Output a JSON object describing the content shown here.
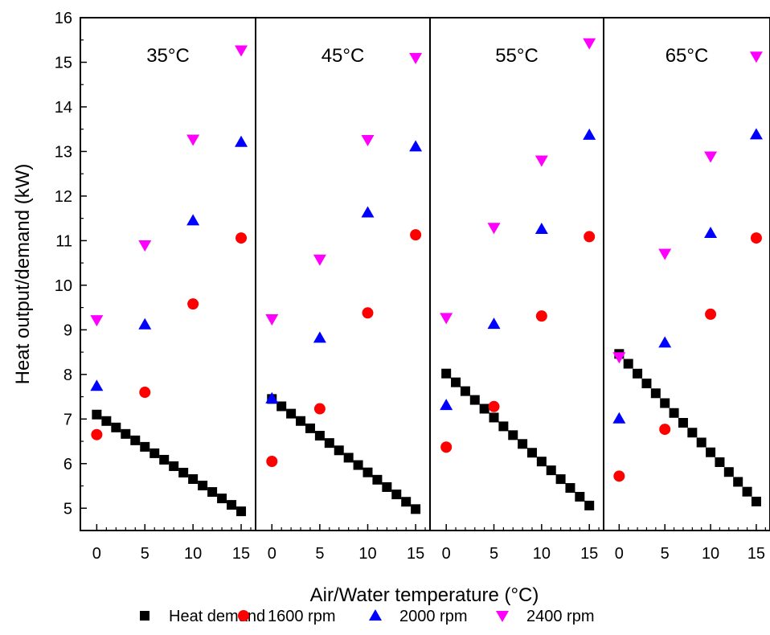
{
  "chart_data": {
    "type": "scatter",
    "ylabel": "Heat output/demand (kW)",
    "xlabel": "Air/Water temperature (°C)",
    "ylim": [
      4.5,
      16
    ],
    "yticks": [
      5,
      6,
      7,
      8,
      9,
      10,
      11,
      12,
      13,
      14,
      15,
      16
    ],
    "xlim_panel": [
      -1.7,
      16.5
    ],
    "xticks": [
      0,
      5,
      10,
      15
    ],
    "legend": {
      "position": "bottom",
      "entries": [
        {
          "name": "Heat demand",
          "marker": "square",
          "color": "#000000"
        },
        {
          "name": "1600 rpm",
          "marker": "circle",
          "color": "#ff0000"
        },
        {
          "name": "2000 rpm",
          "marker": "triangle-up",
          "color": "#0000ff"
        },
        {
          "name": "2400 rpm",
          "marker": "triangle-down",
          "color": "#ff00ff"
        }
      ]
    },
    "panels": [
      {
        "label": "35°C",
        "heat_demand": {
          "x": [
            0,
            15
          ],
          "y": [
            7.1,
            4.93
          ]
        },
        "series": [
          {
            "name": "1600 rpm",
            "x": [
              0,
              5,
              10,
              15
            ],
            "y": [
              6.65,
              7.6,
              9.58,
              11.06
            ]
          },
          {
            "name": "2000 rpm",
            "x": [
              0,
              5,
              10,
              15
            ],
            "y": [
              7.74,
              9.12,
              11.45,
              13.21
            ]
          },
          {
            "name": "2400 rpm",
            "x": [
              0,
              5,
              10,
              15
            ],
            "y": [
              9.22,
              10.9,
              13.27,
              15.27
            ]
          }
        ]
      },
      {
        "label": "45°C",
        "heat_demand": {
          "x": [
            0,
            15
          ],
          "y": [
            7.45,
            4.98
          ]
        },
        "series": [
          {
            "name": "1600 rpm",
            "x": [
              0,
              5,
              10,
              15
            ],
            "y": [
              6.05,
              7.23,
              9.38,
              11.13
            ]
          },
          {
            "name": "2000 rpm",
            "x": [
              0,
              5,
              10,
              15
            ],
            "y": [
              7.46,
              8.82,
              11.63,
              13.11
            ]
          },
          {
            "name": "2400 rpm",
            "x": [
              0,
              5,
              10,
              15
            ],
            "y": [
              9.24,
              10.58,
              13.26,
              15.1
            ]
          }
        ]
      },
      {
        "label": "55°C",
        "heat_demand": {
          "x": [
            0,
            15
          ],
          "y": [
            8.02,
            5.06
          ]
        },
        "series": [
          {
            "name": "1600 rpm",
            "x": [
              0,
              5,
              10,
              15
            ],
            "y": [
              6.37,
              7.28,
              9.31,
              11.09
            ]
          },
          {
            "name": "2000 rpm",
            "x": [
              0,
              5,
              10,
              15
            ],
            "y": [
              7.31,
              9.13,
              11.26,
              13.37
            ]
          },
          {
            "name": "2400 rpm",
            "x": [
              0,
              5,
              10,
              15
            ],
            "y": [
              9.27,
              11.29,
              12.8,
              15.43
            ]
          }
        ]
      },
      {
        "label": "65°C",
        "heat_demand": {
          "x": [
            0,
            15
          ],
          "y": [
            8.46,
            5.15
          ]
        },
        "series": [
          {
            "name": "1600 rpm",
            "x": [
              0,
              5,
              10,
              15
            ],
            "y": [
              5.72,
              6.77,
              9.35,
              11.06
            ]
          },
          {
            "name": "2000 rpm",
            "x": [
              0,
              5,
              10,
              15
            ],
            "y": [
              7.01,
              8.71,
              11.17,
              13.38
            ]
          },
          {
            "name": "2400 rpm",
            "x": [
              0,
              5,
              10,
              15
            ],
            "y": [
              8.39,
              10.71,
              12.89,
              15.13
            ]
          }
        ]
      }
    ]
  }
}
